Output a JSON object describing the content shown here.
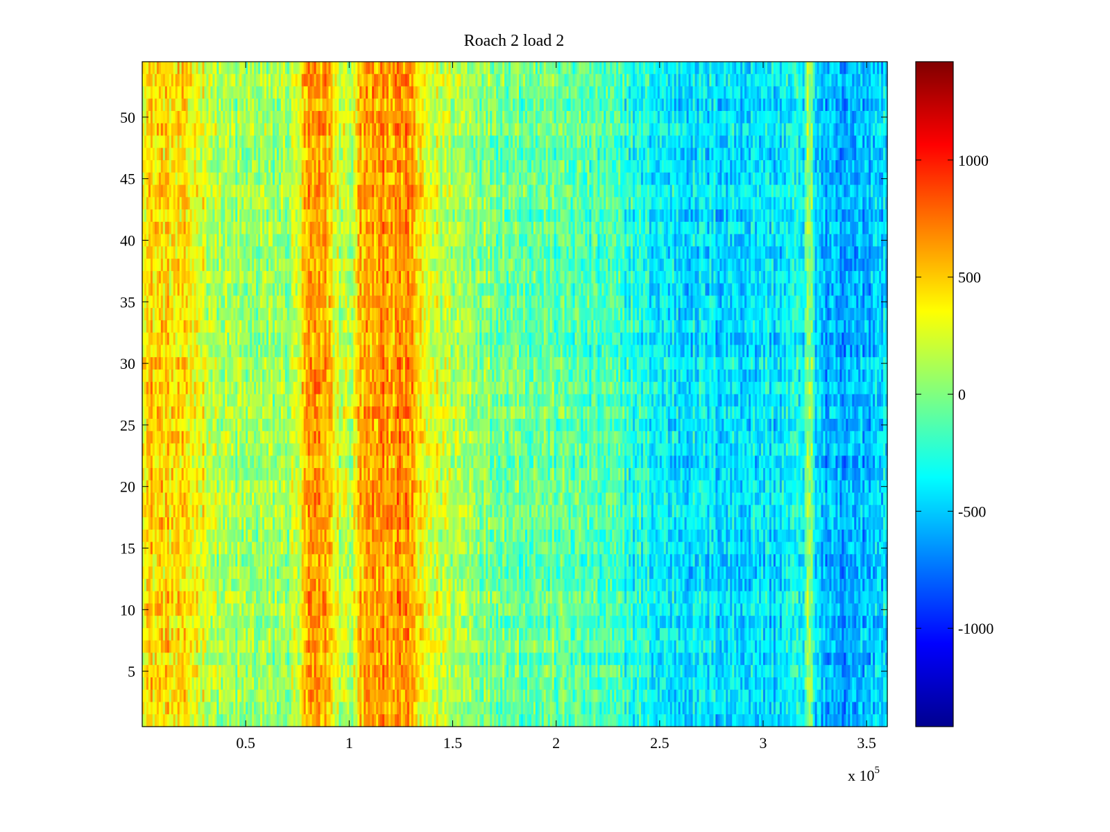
{
  "chart_data": {
    "type": "heatmap",
    "title": "Roach 2 load 2",
    "xlabel": "",
    "ylabel": "",
    "x_exponent_label": "x 10",
    "x_exponent_power": "5",
    "xlim": [
      0,
      3.6
    ],
    "ylim": [
      0.5,
      54.5
    ],
    "x_ticks": [
      {
        "value": 0.5,
        "label": "0.5"
      },
      {
        "value": 1,
        "label": "1"
      },
      {
        "value": 1.5,
        "label": "1.5"
      },
      {
        "value": 2,
        "label": "2"
      },
      {
        "value": 2.5,
        "label": "2.5"
      },
      {
        "value": 3,
        "label": "3"
      },
      {
        "value": 3.5,
        "label": "3.5"
      }
    ],
    "y_ticks": [
      {
        "value": 5,
        "label": "5"
      },
      {
        "value": 10,
        "label": "10"
      },
      {
        "value": 15,
        "label": "15"
      },
      {
        "value": 20,
        "label": "20"
      },
      {
        "value": 25,
        "label": "25"
      },
      {
        "value": 30,
        "label": "30"
      },
      {
        "value": 35,
        "label": "35"
      },
      {
        "value": 40,
        "label": "40"
      },
      {
        "value": 45,
        "label": "45"
      },
      {
        "value": 50,
        "label": "50"
      }
    ],
    "colorbar": {
      "colormap": "jet",
      "range": [
        -1420,
        1420
      ],
      "ticks": [
        {
          "value": 1000,
          "label": "1000"
        },
        {
          "value": 500,
          "label": "500"
        },
        {
          "value": 0,
          "label": "0"
        },
        {
          "value": -500,
          "label": "-500"
        },
        {
          "value": -1000,
          "label": "-1000"
        }
      ]
    },
    "rows": 54,
    "columns": 360,
    "column_profile": [
      {
        "x": 0.0,
        "value": 450
      },
      {
        "x": 0.1,
        "value": 470
      },
      {
        "x": 0.3,
        "value": 300
      },
      {
        "x": 0.35,
        "value": 120
      },
      {
        "x": 0.5,
        "value": 50
      },
      {
        "x": 0.7,
        "value": 80
      },
      {
        "x": 0.76,
        "value": 250
      },
      {
        "x": 0.8,
        "value": 600
      },
      {
        "x": 0.9,
        "value": 550
      },
      {
        "x": 0.95,
        "value": 200
      },
      {
        "x": 1.02,
        "value": 180
      },
      {
        "x": 1.05,
        "value": 550
      },
      {
        "x": 1.2,
        "value": 650
      },
      {
        "x": 1.3,
        "value": 620
      },
      {
        "x": 1.35,
        "value": 300
      },
      {
        "x": 1.5,
        "value": 150
      },
      {
        "x": 1.6,
        "value": 80
      },
      {
        "x": 1.7,
        "value": 0
      },
      {
        "x": 2.0,
        "value": -80
      },
      {
        "x": 2.3,
        "value": -200
      },
      {
        "x": 2.5,
        "value": -380
      },
      {
        "x": 2.8,
        "value": -430
      },
      {
        "x": 3.1,
        "value": -400
      },
      {
        "x": 3.2,
        "value": -300
      },
      {
        "x": 3.22,
        "value": 150
      },
      {
        "x": 3.25,
        "value": -350
      },
      {
        "x": 3.3,
        "value": -580
      },
      {
        "x": 3.4,
        "value": -650
      },
      {
        "x": 3.5,
        "value": -500
      },
      {
        "x": 3.6,
        "value": -400
      }
    ],
    "noise_amplitude": 300
  }
}
